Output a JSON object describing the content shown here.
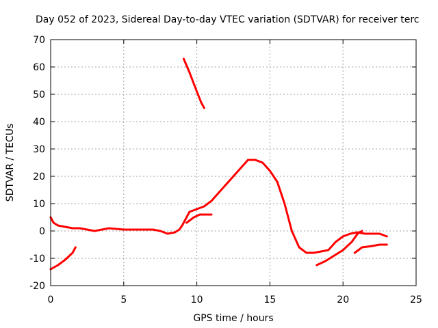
{
  "chart_data": {
    "type": "line",
    "title": "Day 052 of 2023, Sidereal Day-to-day VTEC variation (SDTVAR) for receiver terc",
    "xlabel": "GPS time / hours",
    "ylabel": "SDTVAR / TECUs",
    "xlim": [
      0,
      25
    ],
    "ylim": [
      -20,
      70
    ],
    "xticks": [
      0,
      5,
      10,
      15,
      20,
      25
    ],
    "yticks": [
      -20,
      -10,
      0,
      10,
      20,
      30,
      40,
      50,
      60,
      70
    ],
    "grid": true,
    "series_color": "#ff0000",
    "series": [
      {
        "name": "main-trace",
        "x": [
          0,
          0.2,
          0.5,
          1,
          1.5,
          2,
          2.5,
          3,
          3.5,
          4,
          5,
          6,
          7,
          7.5,
          8,
          8.5,
          8.8,
          9,
          9.2,
          9.5,
          10,
          10.5,
          11,
          11.5,
          12,
          12.5,
          13,
          13.5,
          14,
          14.5,
          15,
          15.5,
          16,
          16.5,
          17,
          17.5,
          18,
          18.5,
          19,
          19.5,
          20,
          20.5,
          21,
          21.5,
          22,
          22.5,
          23
        ],
        "y": [
          5,
          3,
          2,
          1.5,
          1,
          1,
          0.5,
          0,
          0.5,
          1,
          0.5,
          0.5,
          0.5,
          0,
          -1,
          -0.5,
          0.5,
          2,
          4,
          7,
          8,
          9,
          11,
          14,
          17,
          20,
          23,
          26,
          26,
          25,
          22,
          18,
          10,
          0,
          -6,
          -8,
          -8,
          -7.5,
          -7,
          -4,
          -2,
          -1,
          -0.5,
          -1,
          -1,
          -1,
          -2
        ]
      },
      {
        "name": "lower-branch",
        "x": [
          9.3,
          9.8,
          10.2,
          10.6,
          11
        ],
        "y": [
          3,
          5,
          6,
          6,
          6
        ]
      },
      {
        "name": "late-branch-1",
        "x": [
          18.2,
          18.8,
          19.4,
          20,
          20.6,
          21,
          21.3
        ],
        "y": [
          -12.5,
          -11,
          -9,
          -7,
          -4,
          -1,
          0
        ]
      },
      {
        "name": "late-branch-2",
        "x": [
          20.8,
          21.3,
          22,
          22.5,
          23
        ],
        "y": [
          -8,
          -6,
          -5.5,
          -5,
          -5
        ]
      },
      {
        "name": "early-branch",
        "x": [
          0,
          0.5,
          1,
          1.5,
          1.7
        ],
        "y": [
          -14,
          -12.5,
          -10.5,
          -8,
          -6
        ]
      },
      {
        "name": "high-branch",
        "x": [
          9.1,
          9.5,
          10,
          10.3,
          10.5
        ],
        "y": [
          63,
          58,
          51,
          47,
          45
        ]
      }
    ]
  }
}
